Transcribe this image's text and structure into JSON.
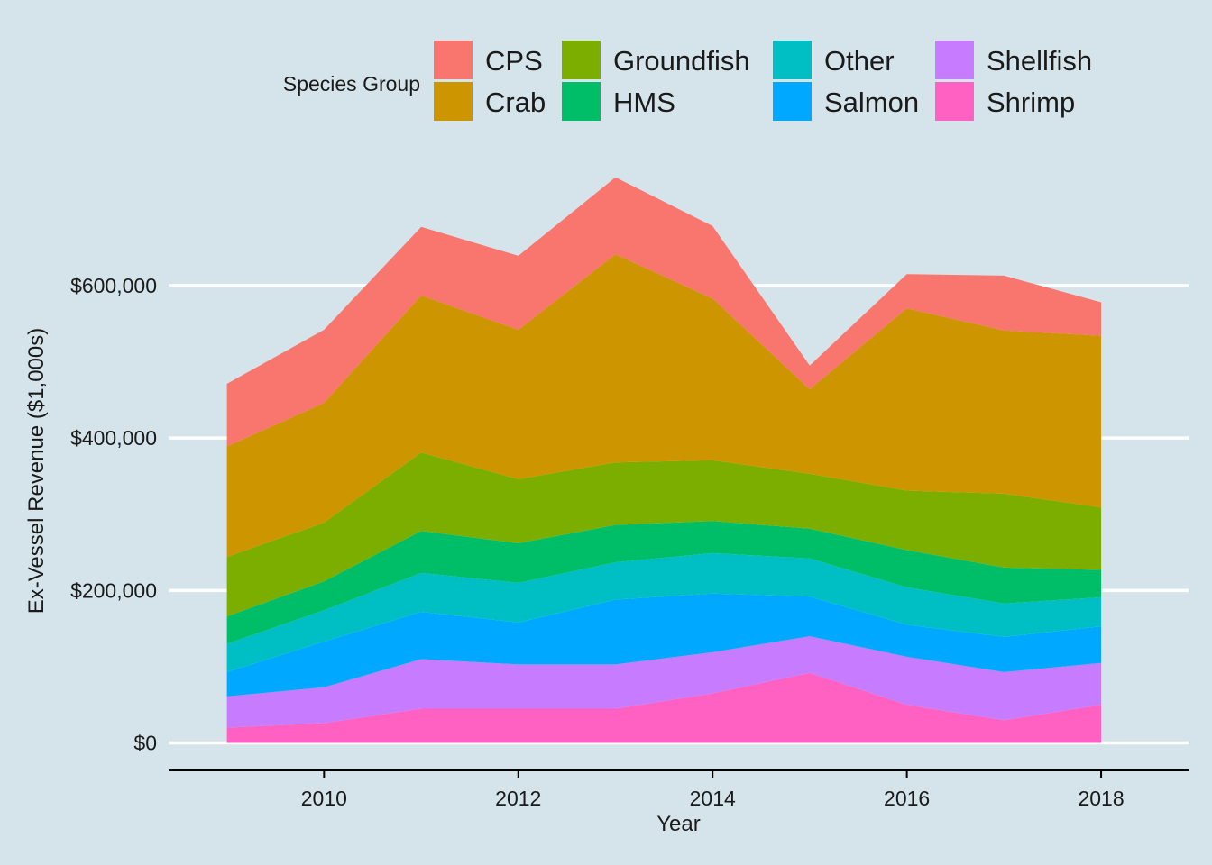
{
  "chart_data": {
    "type": "area",
    "stacked": true,
    "title": "",
    "xlabel": "Year",
    "ylabel": "Ex-Vessel Revenue ($1,000s)",
    "x": [
      2009,
      2010,
      2011,
      2012,
      2013,
      2014,
      2015,
      2016,
      2017,
      2018
    ],
    "xlim": [
      2008.4,
      2018.9
    ],
    "ylim": [
      -36000,
      750000
    ],
    "x_ticks": [
      2010,
      2012,
      2014,
      2016,
      2018
    ],
    "x_tick_labels": [
      "2010",
      "2012",
      "2014",
      "2016",
      "2018"
    ],
    "y_ticks": [
      0,
      200000,
      400000,
      600000
    ],
    "y_tick_labels": [
      "$0",
      "$200,000",
      "$400,000",
      "$600,000"
    ],
    "grid": true,
    "legend": {
      "title": "Species Group",
      "position": "top",
      "entries": [
        "CPS",
        "Crab",
        "Groundfish",
        "HMS",
        "Other",
        "Salmon",
        "Shellfish",
        "Shrimp"
      ]
    },
    "series": [
      {
        "name": "Shrimp",
        "color": "#FF61C3",
        "values": [
          20000,
          26000,
          45000,
          45000,
          45000,
          65000,
          92000,
          50000,
          30000,
          50000
        ]
      },
      {
        "name": "Shellfish",
        "color": "#C77CFF",
        "values": [
          41000,
          47000,
          65000,
          58000,
          58000,
          54000,
          48000,
          63000,
          63000,
          55000
        ]
      },
      {
        "name": "Salmon",
        "color": "#00A9FF",
        "values": [
          32000,
          60000,
          62000,
          55000,
          85000,
          77000,
          52000,
          42000,
          46000,
          48000
        ]
      },
      {
        "name": "Other",
        "color": "#00BFC4",
        "values": [
          37000,
          41000,
          51000,
          52000,
          49000,
          53000,
          50000,
          49000,
          44000,
          38000
        ]
      },
      {
        "name": "HMS",
        "color": "#00BE67",
        "values": [
          36000,
          38000,
          55000,
          52000,
          49000,
          42000,
          39000,
          49000,
          47000,
          36000
        ]
      },
      {
        "name": "Groundfish",
        "color": "#7CAE00",
        "values": [
          78000,
          77000,
          103000,
          84000,
          82000,
          80000,
          72000,
          78000,
          97000,
          82000
        ]
      },
      {
        "name": "Crab",
        "color": "#CD9600",
        "values": [
          145000,
          157000,
          206000,
          196000,
          273000,
          212000,
          111000,
          239000,
          214000,
          225000
        ]
      },
      {
        "name": "CPS",
        "color": "#F8766D",
        "values": [
          82000,
          96000,
          90000,
          97000,
          101000,
          95000,
          31000,
          45000,
          72000,
          44000
        ]
      }
    ]
  }
}
